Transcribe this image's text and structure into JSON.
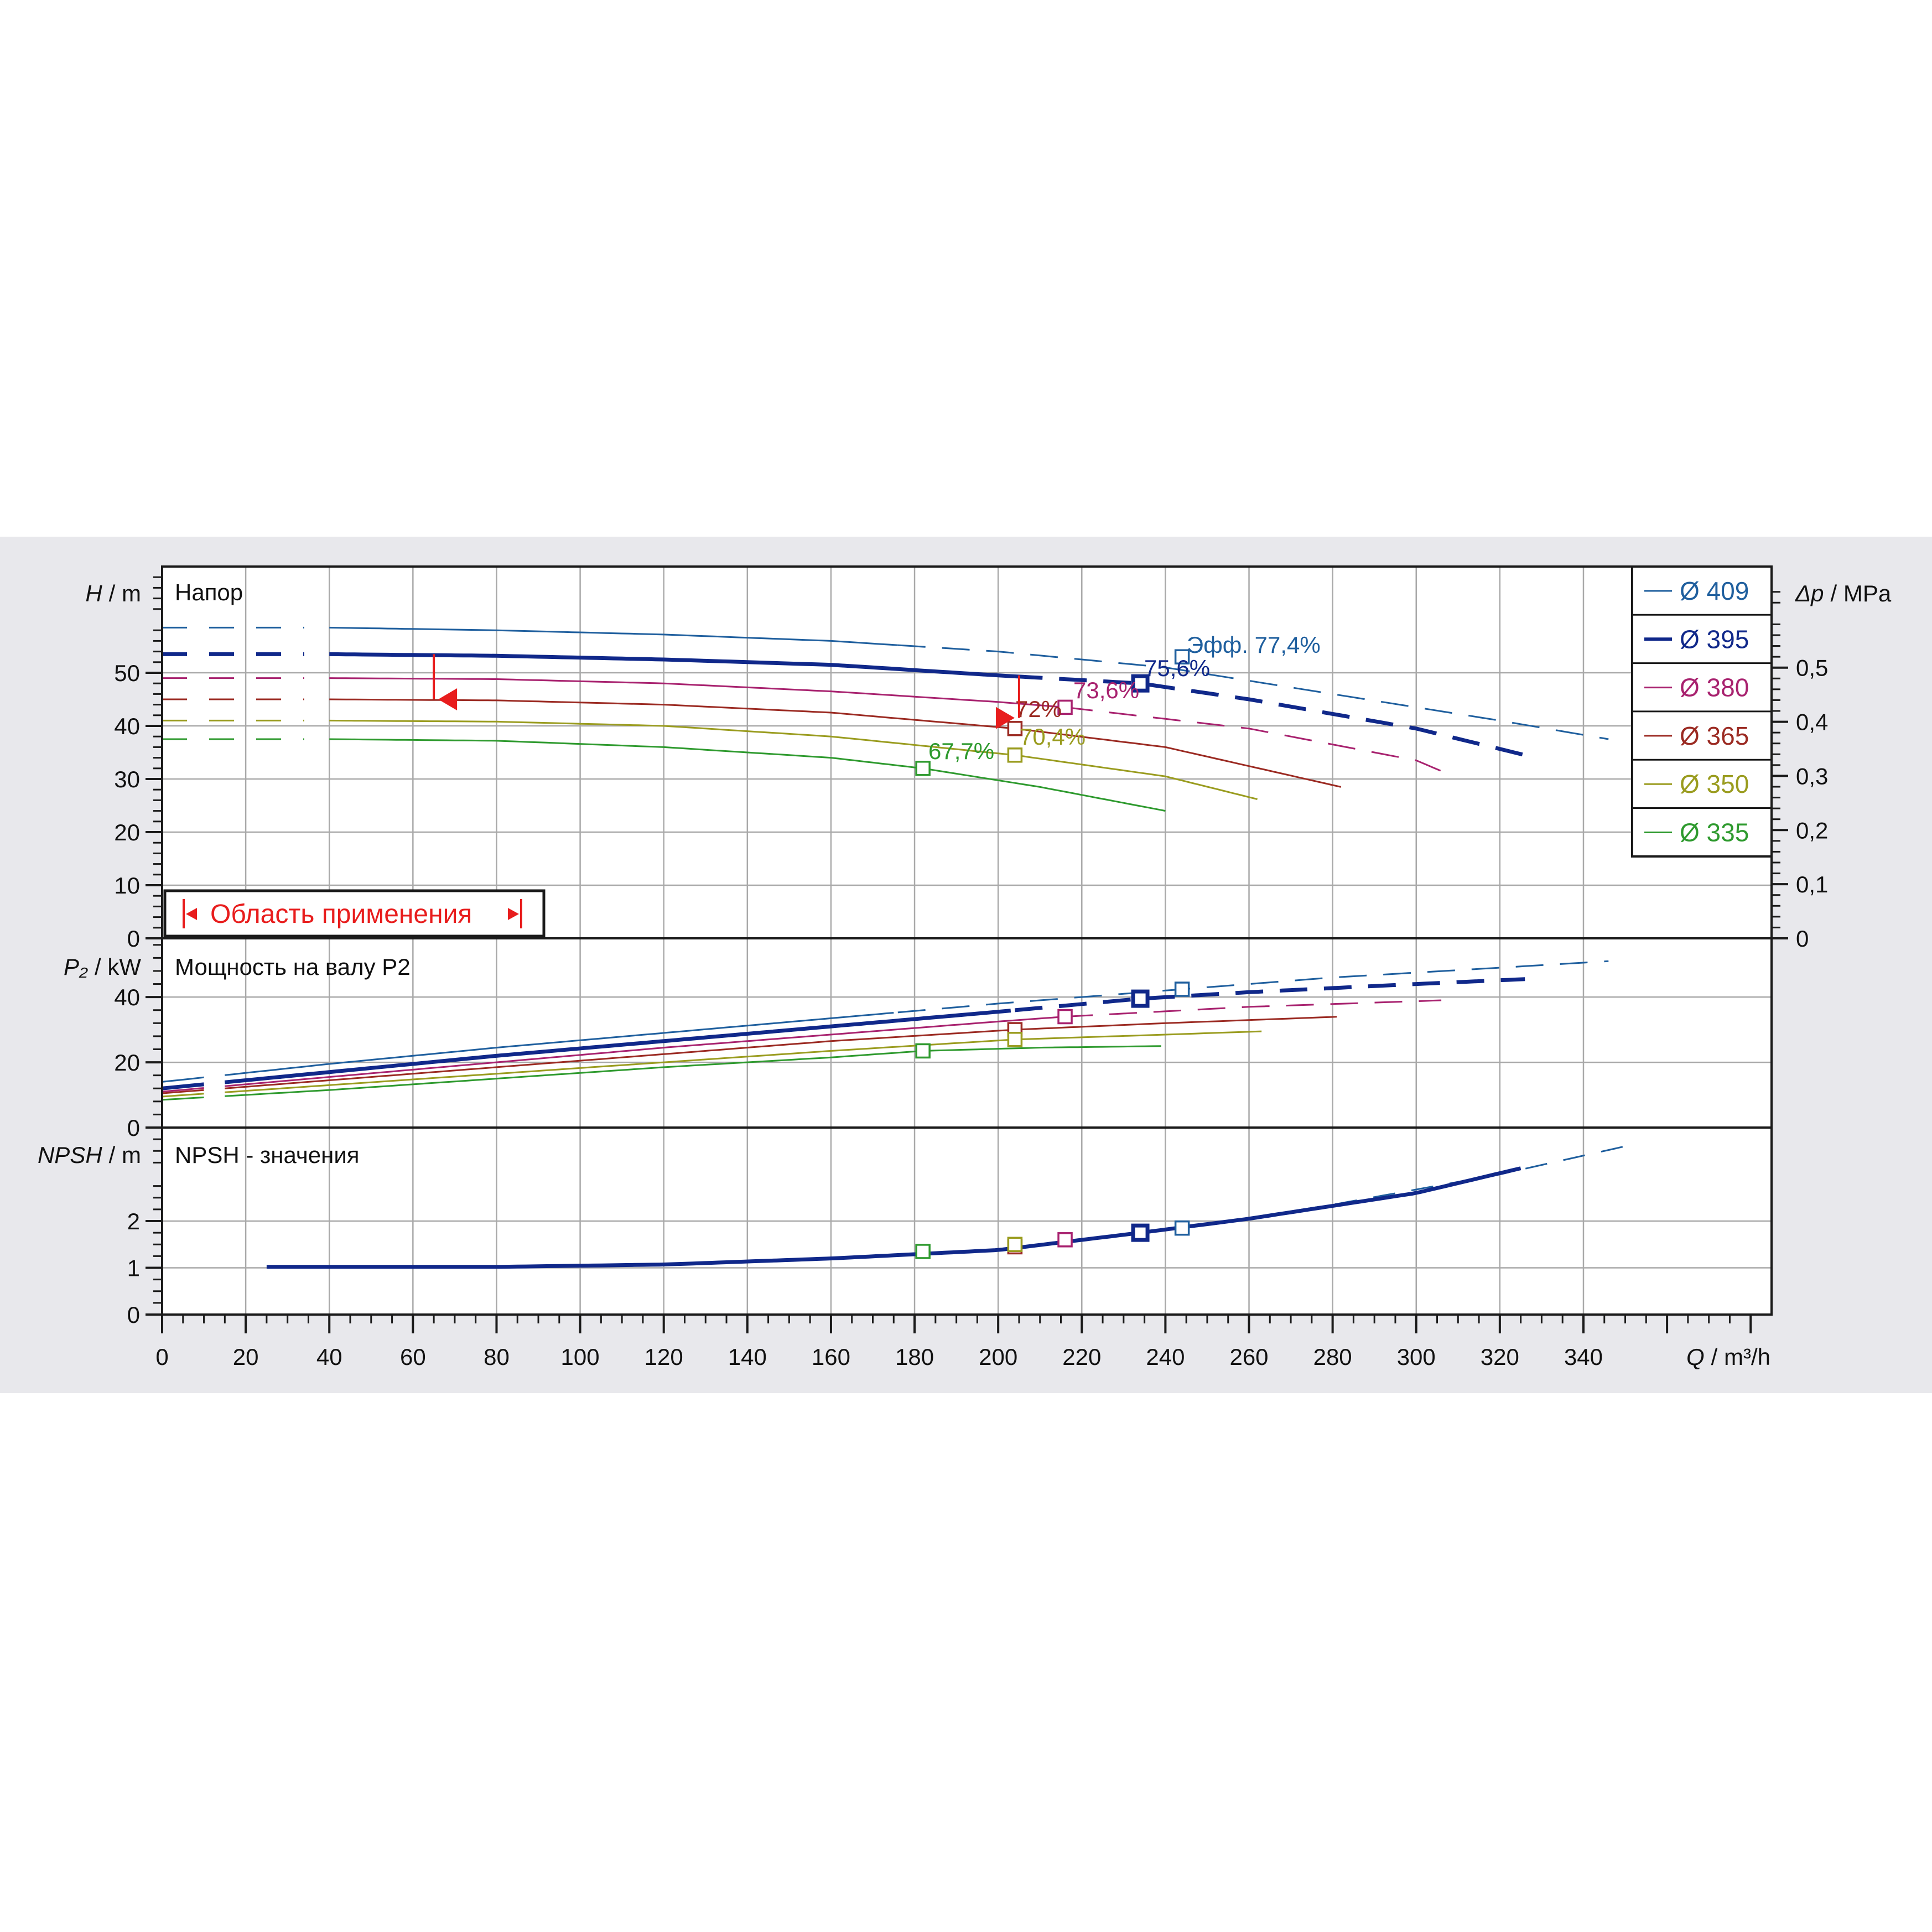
{
  "background_color": "#e8e8ec",
  "plot_background": "#ffffff",
  "grid_color": "#a9a9a9",
  "axis_color": "#1a1a1a",
  "x_axis": {
    "label_var": "Q",
    "label_unit": "/ m³/h",
    "ticks": [
      "0",
      "20",
      "40",
      "60",
      "80",
      "100",
      "120",
      "140",
      "160",
      "180",
      "200",
      "220",
      "240",
      "260",
      "280",
      "300",
      "320",
      "340"
    ],
    "range": [
      0,
      385
    ]
  },
  "head_panel": {
    "title": "Напор",
    "y_label_var": "H",
    "y_label_unit": "/ m",
    "y_ticks": [
      "0",
      "10",
      "20",
      "30",
      "40",
      "50"
    ],
    "y_range": [
      0,
      70
    ],
    "right_label_var": "Δp",
    "right_label_unit": "/ MPa",
    "right_ticks": [
      "0",
      "0,1",
      "0,2",
      "0,3",
      "0,4",
      "0,5"
    ],
    "efficiency_prefix": "Эфф.",
    "application_area_label": "Область применения",
    "application_area_color": "#e81d1d"
  },
  "power_panel": {
    "title": "Мощность на валу P2",
    "y_label_var": "P₂",
    "y_label_unit": "/ kW",
    "y_ticks": [
      "0",
      "20",
      "40"
    ],
    "y_range": [
      0,
      58
    ]
  },
  "npsh_panel": {
    "title": "NPSH - значения",
    "y_label_var": "NPSH",
    "y_label_unit": "/ m",
    "y_ticks": [
      "0",
      "1",
      "2"
    ],
    "y_range": [
      0,
      4
    ]
  },
  "legend_symbol": "Ø",
  "chart_data": {
    "type": "line",
    "x_unit": "m³/h",
    "series": [
      {
        "name": "409",
        "color": "#1f5f9e",
        "efficiency_label": "77,4%",
        "bep": [
          244,
          53
        ],
        "head": [
          [
            0,
            58.5
          ],
          [
            40,
            58.5
          ],
          [
            80,
            58
          ],
          [
            120,
            57.2
          ],
          [
            160,
            56
          ],
          [
            200,
            54
          ],
          [
            240,
            51
          ],
          [
            280,
            46
          ],
          [
            320,
            41
          ],
          [
            346,
            37.5
          ]
        ],
        "head_dashed_from": 176,
        "power": [
          [
            0,
            14
          ],
          [
            40,
            19.5
          ],
          [
            80,
            24.5
          ],
          [
            120,
            29
          ],
          [
            160,
            33.5
          ],
          [
            200,
            38
          ],
          [
            240,
            42
          ],
          [
            280,
            46
          ],
          [
            320,
            49
          ],
          [
            346,
            51
          ]
        ],
        "npsh": [
          [
            244,
            1.85
          ],
          [
            280,
            2.35
          ],
          [
            320,
            3.0
          ],
          [
            350,
            3.6
          ]
        ]
      },
      {
        "name": "395",
        "color": "#10288a",
        "efficiency_label": "75,6%",
        "bep": [
          234,
          48
        ],
        "head": [
          [
            0,
            53.5
          ],
          [
            40,
            53.5
          ],
          [
            80,
            53.2
          ],
          [
            120,
            52.5
          ],
          [
            160,
            51.5
          ],
          [
            200,
            49.5
          ],
          [
            234,
            48
          ],
          [
            260,
            45
          ],
          [
            300,
            39.5
          ],
          [
            326,
            34.5
          ]
        ],
        "head_dashed_from": 204,
        "power": [
          [
            0,
            12
          ],
          [
            40,
            17
          ],
          [
            80,
            22
          ],
          [
            120,
            26.5
          ],
          [
            160,
            31
          ],
          [
            200,
            35.5
          ],
          [
            234,
            39.5
          ],
          [
            260,
            41.5
          ],
          [
            300,
            44
          ],
          [
            326,
            45.5
          ]
        ],
        "npsh": [
          [
            25,
            1.02
          ],
          [
            80,
            1.02
          ],
          [
            120,
            1.07
          ],
          [
            160,
            1.2
          ],
          [
            200,
            1.38
          ],
          [
            234,
            1.75
          ],
          [
            260,
            2.05
          ],
          [
            300,
            2.6
          ],
          [
            326,
            3.15
          ]
        ]
      },
      {
        "name": "380",
        "color": "#a8226f",
        "efficiency_label": "73,6%",
        "bep": [
          216,
          43.5
        ],
        "head": [
          [
            0,
            49
          ],
          [
            40,
            49
          ],
          [
            80,
            48.8
          ],
          [
            120,
            48
          ],
          [
            160,
            46.5
          ],
          [
            200,
            44.5
          ],
          [
            216,
            43.5
          ],
          [
            260,
            39.5
          ],
          [
            300,
            33.5
          ],
          [
            306,
            31.5
          ]
        ],
        "head_dashed_from": 216,
        "power": [
          [
            0,
            11
          ],
          [
            40,
            15.5
          ],
          [
            80,
            20
          ],
          [
            120,
            24.5
          ],
          [
            160,
            28.5
          ],
          [
            200,
            32.5
          ],
          [
            216,
            34
          ],
          [
            260,
            37
          ],
          [
            306,
            39
          ]
        ],
        "npsh": [
          [
            216,
            1.6
          ]
        ]
      },
      {
        "name": "365",
        "color": "#9b2a22",
        "efficiency_label": "72%",
        "bep": [
          204,
          39.5
        ],
        "head": [
          [
            0,
            45
          ],
          [
            40,
            45
          ],
          [
            80,
            44.8
          ],
          [
            120,
            44
          ],
          [
            160,
            42.5
          ],
          [
            204,
            39.5
          ],
          [
            240,
            36
          ],
          [
            282,
            28.5
          ]
        ],
        "head_dashed_from": null,
        "power": [
          [
            0,
            10.5
          ],
          [
            40,
            14.5
          ],
          [
            80,
            18.5
          ],
          [
            120,
            22.5
          ],
          [
            160,
            26.5
          ],
          [
            204,
            30
          ],
          [
            240,
            32
          ],
          [
            282,
            34
          ]
        ],
        "npsh": [
          [
            204,
            1.45
          ]
        ]
      },
      {
        "name": "350",
        "color": "#9a9c1f",
        "efficiency_label": "70,4%",
        "bep": [
          204,
          34.5
        ],
        "head": [
          [
            0,
            41
          ],
          [
            40,
            41
          ],
          [
            80,
            40.8
          ],
          [
            120,
            40
          ],
          [
            160,
            38
          ],
          [
            204,
            34.5
          ],
          [
            240,
            30.5
          ],
          [
            263,
            26
          ]
        ],
        "head_dashed_from": null,
        "power": [
          [
            0,
            9.5
          ],
          [
            40,
            13
          ],
          [
            80,
            16.5
          ],
          [
            120,
            20
          ],
          [
            160,
            23.5
          ],
          [
            204,
            27
          ],
          [
            240,
            28.5
          ],
          [
            263,
            29.5
          ]
        ],
        "npsh": [
          [
            204,
            1.5
          ]
        ]
      },
      {
        "name": "335",
        "color": "#2e9a2e",
        "efficiency_label": "67,7%",
        "bep": [
          182,
          32
        ],
        "head": [
          [
            0,
            37.5
          ],
          [
            40,
            37.5
          ],
          [
            80,
            37.2
          ],
          [
            120,
            36
          ],
          [
            160,
            34
          ],
          [
            182,
            32
          ],
          [
            210,
            28.5
          ],
          [
            240,
            24
          ]
        ],
        "head_dashed_from": null,
        "power": [
          [
            0,
            8.5
          ],
          [
            40,
            11.5
          ],
          [
            80,
            15
          ],
          [
            120,
            18.5
          ],
          [
            160,
            21.5
          ],
          [
            182,
            23.5
          ],
          [
            210,
            24.5
          ],
          [
            240,
            25
          ]
        ],
        "npsh": [
          [
            182,
            1.35
          ]
        ]
      }
    ],
    "operating_range": {
      "min_flow": 65,
      "max_flow": 205,
      "head_min": 45,
      "head_max": 53.5,
      "color": "#e81d1d"
    }
  }
}
